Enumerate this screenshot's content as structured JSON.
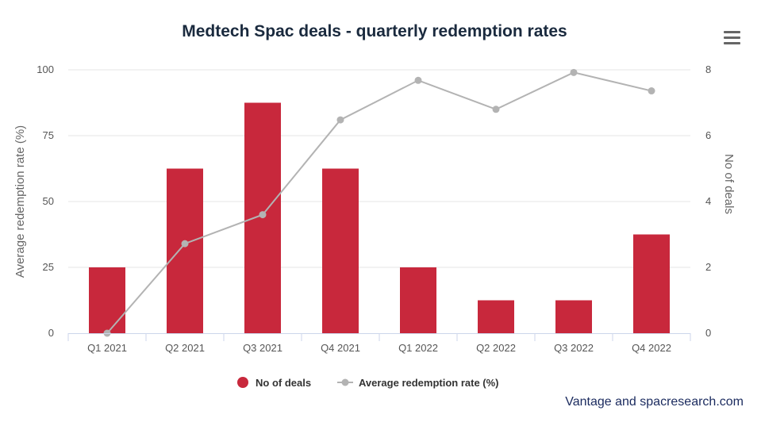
{
  "chart_data": {
    "type": "bar",
    "title": "Medtech Spac deals - quarterly redemption rates",
    "categories": [
      "Q1 2021",
      "Q2 2021",
      "Q3 2021",
      "Q4 2021",
      "Q1 2022",
      "Q2 2022",
      "Q3 2022",
      "Q4 2022"
    ],
    "series": [
      {
        "name": "No of deals",
        "type": "bar",
        "axis": "right",
        "color": "#c8283c",
        "values": [
          2,
          5,
          7,
          5,
          2,
          1,
          1,
          3
        ]
      },
      {
        "name": "Average redemption rate (%)",
        "type": "line",
        "axis": "left",
        "color": "#b3b3b3",
        "values": [
          0,
          34,
          45,
          81,
          96,
          85,
          99,
          92
        ]
      }
    ],
    "y_left": {
      "label": "Average redemption rate (%)",
      "ylim": [
        0,
        100
      ],
      "ticks": [
        0,
        25,
        50,
        75,
        100
      ]
    },
    "y_right": {
      "label": "No of deals",
      "ylim": [
        0,
        8
      ],
      "ticks": [
        0,
        2,
        4,
        6,
        8
      ]
    },
    "grid": true,
    "legend_position": "bottom-center"
  },
  "source": "Vantage and spacresearch.com",
  "menu_icon": "hamburger-menu-icon"
}
